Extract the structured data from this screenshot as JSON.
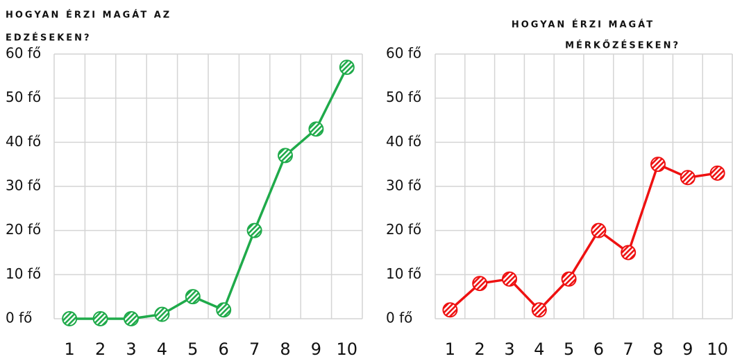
{
  "chart_data": [
    {
      "type": "line",
      "title": [
        "HOGYAN ÉRZI MAGÁT AZ",
        "EDZÉSEKEN?"
      ],
      "categories": [
        "1",
        "2",
        "3",
        "4",
        "5",
        "6",
        "7",
        "8",
        "9",
        "10"
      ],
      "values": [
        0,
        0,
        0,
        1,
        5,
        2,
        20,
        37,
        43,
        57
      ],
      "color": "#1faa4a",
      "ylim": [
        0,
        60
      ],
      "yticks": [
        {
          "value": 0,
          "label": "0 fő"
        },
        {
          "value": 10,
          "label": "10 fő"
        },
        {
          "value": 20,
          "label": "20 fő"
        },
        {
          "value": 30,
          "label": "30 fő"
        },
        {
          "value": 40,
          "label": "40 fő"
        },
        {
          "value": 50,
          "label": "50 fő"
        },
        {
          "value": 60,
          "label": "60 fő"
        }
      ],
      "grid": true
    },
    {
      "type": "line",
      "title": [
        "HOGYAN ÉRZI MAGÁT",
        "MÉRKŐZÉSEKEN?"
      ],
      "categories": [
        "1",
        "2",
        "3",
        "4",
        "5",
        "6",
        "7",
        "8",
        "9",
        "10"
      ],
      "values": [
        2,
        8,
        9,
        2,
        9,
        20,
        15,
        35,
        32,
        33
      ],
      "color": "#ee1111",
      "ylim": [
        0,
        60
      ],
      "yticks": [
        {
          "value": 0,
          "label": "0 fő"
        },
        {
          "value": 10,
          "label": "10 fő"
        },
        {
          "value": 20,
          "label": "20 fő"
        },
        {
          "value": 30,
          "label": "30 fő"
        },
        {
          "value": 40,
          "label": "40 fő"
        },
        {
          "value": 50,
          "label": "50 fő"
        },
        {
          "value": 60,
          "label": "60 fő"
        }
      ],
      "grid": true
    }
  ]
}
